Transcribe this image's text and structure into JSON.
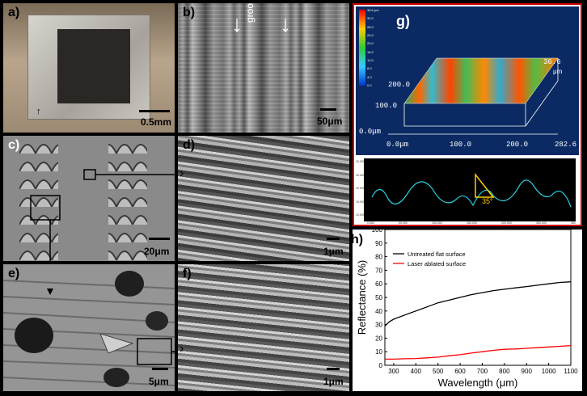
{
  "panels": {
    "a": {
      "label": "a)",
      "scale": "0.5mm"
    },
    "b": {
      "label": "b)",
      "scale": "50μm",
      "annotation": "groove"
    },
    "c": {
      "label": "c)",
      "scale": "20μm"
    },
    "d": {
      "label": "d)",
      "scale": "1μm"
    },
    "e": {
      "label": "e)",
      "scale": "5μm"
    },
    "f": {
      "label": "f)",
      "scale": "1μm"
    },
    "g": {
      "label": "g)",
      "z_max": "36.6",
      "z_unit": "μm",
      "y_ticks": [
        "200.0",
        "100.0",
        "0.0μm"
      ],
      "x_ticks": [
        "0.0μm",
        "100.0",
        "200.0",
        "282.6"
      ],
      "colorbar_ticks": [
        "36.6 μm",
        "32.0",
        "28.0",
        "24.0",
        "20.0",
        "16.0",
        "12.0",
        "8.0",
        "4.0",
        "0.0"
      ],
      "profile_angle": "35°",
      "profile_y_ticks": [
        "30.000",
        "25.000",
        "20.000",
        "15.000",
        "10.000"
      ],
      "profile_x_ticks": [
        "0.000",
        "50.000",
        "100.000",
        "150.000",
        "200.000",
        "250.000",
        "282"
      ]
    },
    "h": {
      "label": "h)"
    }
  },
  "colors": {
    "untreated": "#000000",
    "ablated": "#ff0000",
    "panel_g_border": "#cc0000",
    "panel_g_bg": "#0b2a63",
    "profile_line": "#2ad0e0"
  },
  "chart_data": {
    "type": "line",
    "xlabel": "Wavelength (μm)",
    "ylabel": "Reflectance (%)",
    "xlim": [
      260,
      1100
    ],
    "ylim": [
      0,
      100
    ],
    "xticks": [
      300,
      400,
      500,
      600,
      700,
      800,
      900,
      1000,
      1100
    ],
    "yticks": [
      0,
      10,
      20,
      30,
      40,
      50,
      60,
      70,
      80,
      90,
      100
    ],
    "legend_position": "top-left",
    "series": [
      {
        "name": "Untreated flat surface",
        "x": [
          260,
          280,
          300,
          350,
          400,
          450,
          500,
          550,
          600,
          650,
          700,
          750,
          800,
          850,
          900,
          950,
          1000,
          1050,
          1100
        ],
        "values": [
          29,
          32,
          34,
          37,
          40,
          43,
          46,
          48,
          50,
          52,
          53.5,
          55,
          56,
          57,
          58,
          59,
          60,
          61,
          61.5
        ]
      },
      {
        "name": "Laser ablated surface",
        "x": [
          260,
          300,
          350,
          400,
          450,
          500,
          550,
          600,
          650,
          700,
          750,
          800,
          850,
          900,
          950,
          1000,
          1050,
          1100
        ],
        "values": [
          4.5,
          4.5,
          4.8,
          5,
          5.5,
          6,
          7,
          7.8,
          9,
          10,
          11,
          11.8,
          12,
          12.5,
          13,
          13.5,
          14,
          14.5
        ]
      }
    ]
  }
}
